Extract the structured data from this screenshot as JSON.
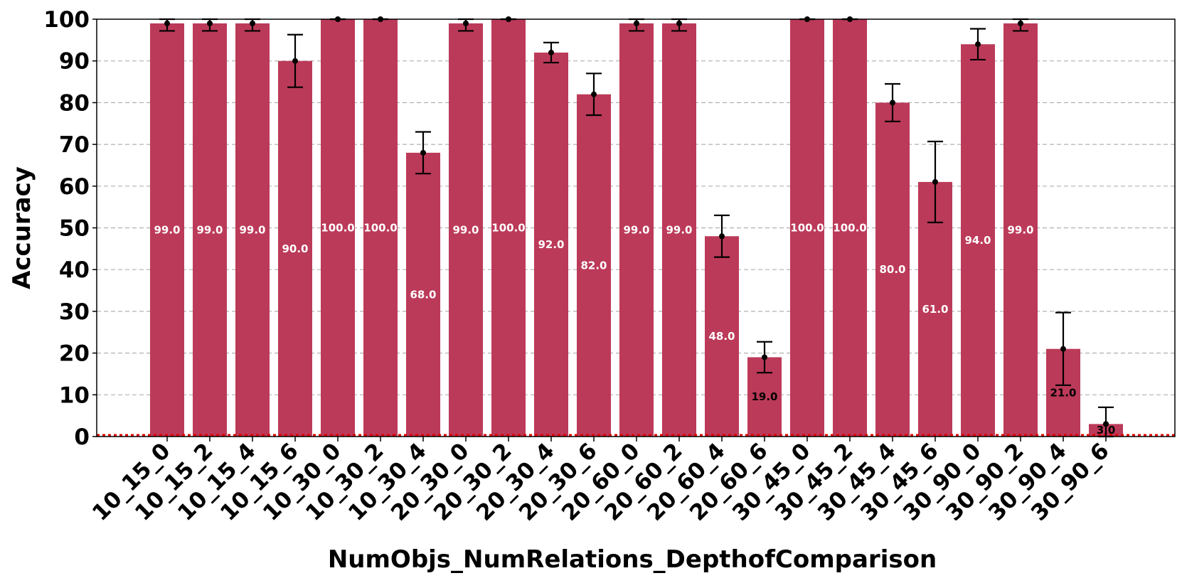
{
  "chart_data": {
    "type": "bar",
    "title": "",
    "xlabel": "NumObjs_NumRelations_DepthofComparison",
    "ylabel": "Accuracy",
    "ylim": [
      0,
      100
    ],
    "yticks": [
      0,
      10,
      20,
      30,
      40,
      50,
      60,
      70,
      80,
      90,
      100
    ],
    "grid": "horizontal dashed",
    "legend": "none",
    "categories": [
      "10_15_0",
      "10_15_2",
      "10_15_4",
      "10_15_6",
      "10_30_0",
      "10_30_2",
      "10_30_4",
      "20_30_0",
      "20_30_2",
      "20_30_4",
      "20_30_6",
      "20_60_0",
      "20_60_2",
      "20_60_4",
      "20_60_6",
      "30_45_0",
      "30_45_2",
      "30_45_4",
      "30_45_6",
      "30_90_0",
      "30_90_2",
      "30_90_4",
      "30_90_6"
    ],
    "values": [
      99,
      99,
      99,
      90,
      100,
      100,
      68,
      99,
      100,
      92,
      82,
      99,
      99,
      48,
      19,
      100,
      100,
      80,
      61,
      94,
      99,
      21,
      3
    ],
    "value_labels": [
      "99.0",
      "99.0",
      "99.0",
      "90.0",
      "100.0",
      "100.0",
      "68.0",
      "99.0",
      "100.0",
      "92.0",
      "82.0",
      "99.0",
      "99.0",
      "48.0",
      "19.0",
      "100.0",
      "100.0",
      "80.0",
      "61.0",
      "94.0",
      "99.0",
      "21.0",
      "3.0"
    ],
    "error_low": [
      97.2,
      97.2,
      97.2,
      83.7,
      100,
      100,
      63,
      97.2,
      100,
      89.6,
      77,
      97.2,
      97.2,
      43,
      15.3,
      100,
      100,
      75.5,
      51.3,
      90.3,
      97.2,
      12.3,
      0
    ],
    "error_high": [
      100,
      100,
      100,
      96.3,
      100,
      100,
      73,
      100,
      100,
      94.4,
      87,
      100,
      100,
      53,
      22.7,
      100,
      100,
      84.5,
      70.7,
      97.7,
      100,
      29.7,
      7
    ],
    "bar_color": "#bc3a59",
    "error_color": "#000000",
    "baseline_color": "#e00000"
  }
}
